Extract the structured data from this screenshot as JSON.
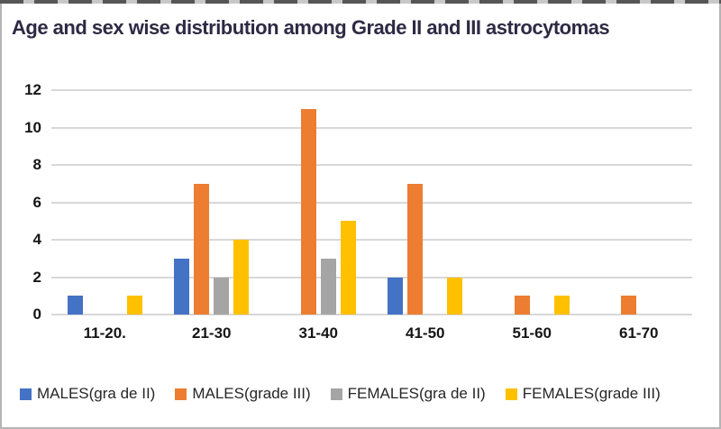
{
  "figure": {
    "title": "Age and sex wise distribution among Grade II and III astrocytomas"
  },
  "chart_data": {
    "type": "bar",
    "title": "Age and sex wise distribution among Grade II and III astrocytomas",
    "categories": [
      "11-20.",
      "21-30",
      "31-40",
      "41-50",
      "51-60",
      "61-70"
    ],
    "series": [
      {
        "name": "MALES(gra de II)",
        "color": "#4472C4",
        "values": [
          1,
          3,
          0,
          2,
          0,
          0
        ]
      },
      {
        "name": "MALES(grade III)",
        "color": "#ED7D31",
        "values": [
          0,
          7,
          11,
          7,
          1,
          1
        ]
      },
      {
        "name": "FEMALES(gra de II)",
        "color": "#A5A5A5",
        "values": [
          0,
          2,
          3,
          0,
          0,
          0
        ]
      },
      {
        "name": "FEMALES(grade III)",
        "color": "#FFC000",
        "values": [
          1,
          4,
          5,
          2,
          1,
          0
        ]
      }
    ],
    "xlabel": "",
    "ylabel": "",
    "ylim": [
      0,
      12
    ],
    "yticks": [
      0,
      2,
      4,
      6,
      8,
      10,
      12
    ],
    "grid": true,
    "legend_position": "bottom"
  },
  "style_colors": {
    "title": "#2e2a44",
    "axis_text": "#161616",
    "gridline": "#d8d8d8",
    "frame_border": "#b5b5b5"
  }
}
